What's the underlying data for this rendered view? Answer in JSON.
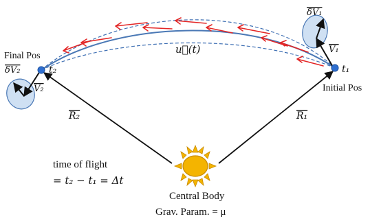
{
  "colors": {
    "background": "#ffffff",
    "vector_black": "#111111",
    "transfer_arc": "#4a78b5",
    "bound_dashed": "#3e6fb3",
    "thrust_red": "#e32626",
    "node_blue": "#2f6fd0",
    "ellipse_fill": "#cfe0f3",
    "ellipse_stroke": "#4a78b5",
    "sun_fill": "#f4b400",
    "sun_stroke": "#c78a00"
  },
  "labels": {
    "final_pos": "Final Pos",
    "initial_pos": "Initial Pos",
    "dv2": "δV₂",
    "v2": "V₂",
    "t2": "t₂",
    "t1": "t₁",
    "dv1": "δV₁",
    "v1": "V₁",
    "u_t": "u⃗(t)",
    "r2": "R₂",
    "r1": "R₁",
    "tof_title": "time of flight",
    "tof_formula": "= t₂ − t₁ = Δt",
    "central_body": "Central Body",
    "grav_param": "Grav. Param. = μ"
  },
  "icons": {
    "sun": "sun-icon",
    "final_node": "position-dot-icon",
    "initial_node": "position-dot-icon"
  }
}
